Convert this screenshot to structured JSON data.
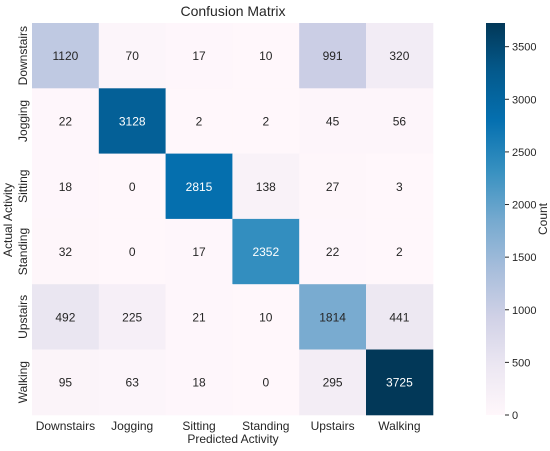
{
  "chart_data": {
    "type": "heatmap",
    "title": "Confusion Matrix",
    "xlabel": "Predicted Activity",
    "ylabel": "Actual Activity",
    "x_categories": [
      "Downstairs",
      "Jogging",
      "Sitting",
      "Standing",
      "Upstairs",
      "Walking"
    ],
    "y_categories": [
      "Downstairs",
      "Jogging",
      "Sitting",
      "Standing",
      "Upstairs",
      "Walking"
    ],
    "values": [
      [
        1120,
        70,
        17,
        10,
        991,
        320
      ],
      [
        22,
        3128,
        2,
        2,
        45,
        56
      ],
      [
        18,
        0,
        2815,
        138,
        27,
        3
      ],
      [
        32,
        0,
        17,
        2352,
        22,
        2
      ],
      [
        492,
        225,
        21,
        10,
        1814,
        441
      ],
      [
        95,
        63,
        18,
        0,
        295,
        3725
      ]
    ],
    "colormap": "PuBu",
    "colorbar": {
      "label": "Count",
      "range": [
        0,
        3725
      ],
      "ticks": [
        0,
        500,
        1000,
        1500,
        2000,
        2500,
        3000,
        3500
      ]
    }
  }
}
